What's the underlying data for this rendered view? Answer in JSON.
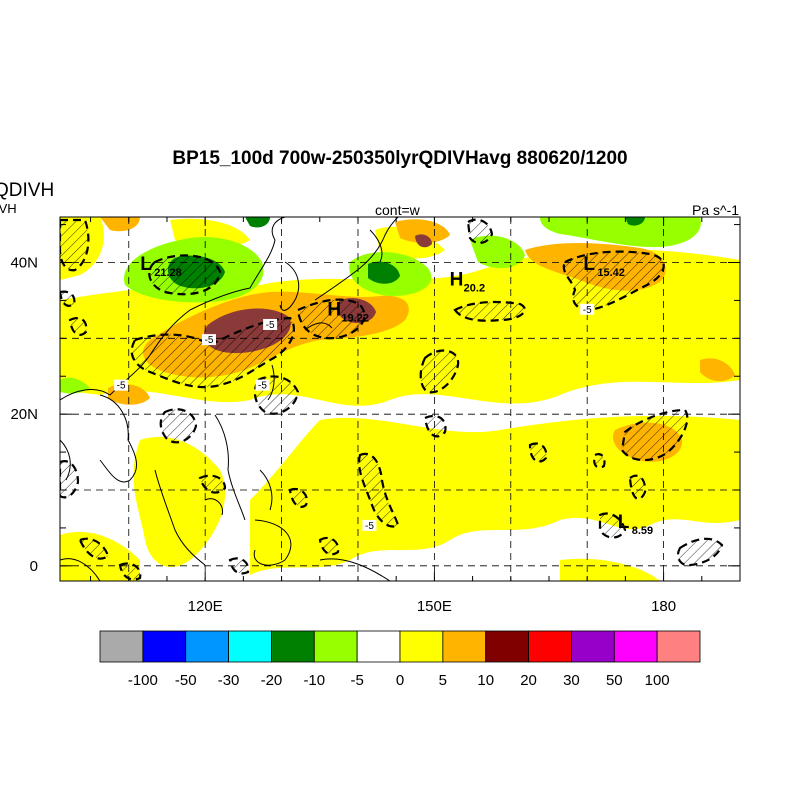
{
  "title": "BP15_100d 700w-250350lyrQDIVHavg  880620/1200",
  "left_label_top": "QDIVH",
  "left_label_bottom": "IVH",
  "center_label": "cont=w",
  "units_label": "Pa s^-1",
  "map": {
    "lon_range": [
      101,
      190
    ],
    "lat_range": [
      -2,
      46
    ],
    "lon_ticks": [
      {
        "value": 120,
        "label": "120E"
      },
      {
        "value": 150,
        "label": "150E"
      },
      {
        "value": 180,
        "label": "180"
      }
    ],
    "lat_ticks": [
      {
        "value": 40,
        "label": "40N"
      },
      {
        "value": 20,
        "label": "20N"
      },
      {
        "value": 0,
        "label": "0"
      }
    ],
    "pressure_centers": [
      {
        "type": "L",
        "value": "21.28",
        "lon": 111.5,
        "lat": 39
      },
      {
        "type": "H",
        "value": "19.22",
        "lon": 136,
        "lat": 33
      },
      {
        "type": "H",
        "value": "20.2",
        "lon": 152,
        "lat": 37
      },
      {
        "type": "L",
        "value": "15.42",
        "lon": 169.5,
        "lat": 39
      },
      {
        "type": "L",
        "value": "8.59",
        "lon": 174,
        "lat": 5
      }
    ],
    "contour_labels": [
      {
        "text": "-5",
        "lon": 120.5,
        "lat": 29.5
      },
      {
        "text": "-5",
        "lon": 128.5,
        "lat": 31.5
      },
      {
        "text": "-5",
        "lon": 109,
        "lat": 23.5
      },
      {
        "text": "-5",
        "lon": 127.5,
        "lat": 23.5
      },
      {
        "text": "-5",
        "lon": 170,
        "lat": 33.5
      },
      {
        "text": "-5",
        "lon": 141.5,
        "lat": 5
      }
    ]
  },
  "colorbar": {
    "colors": [
      "#aaaaaa",
      "#0000ff",
      "#0096ff",
      "#00ffff",
      "#008000",
      "#96ff00",
      "#ffffff",
      "#ffff00",
      "#ffb400",
      "#800000",
      "#ff0000",
      "#9600c8",
      "#ff00ff",
      "#ff8080"
    ],
    "labels": [
      "-100",
      "-50",
      "-30",
      "-20",
      "-10",
      "-5",
      "0",
      "5",
      "10",
      "20",
      "30",
      "50",
      "100"
    ]
  }
}
